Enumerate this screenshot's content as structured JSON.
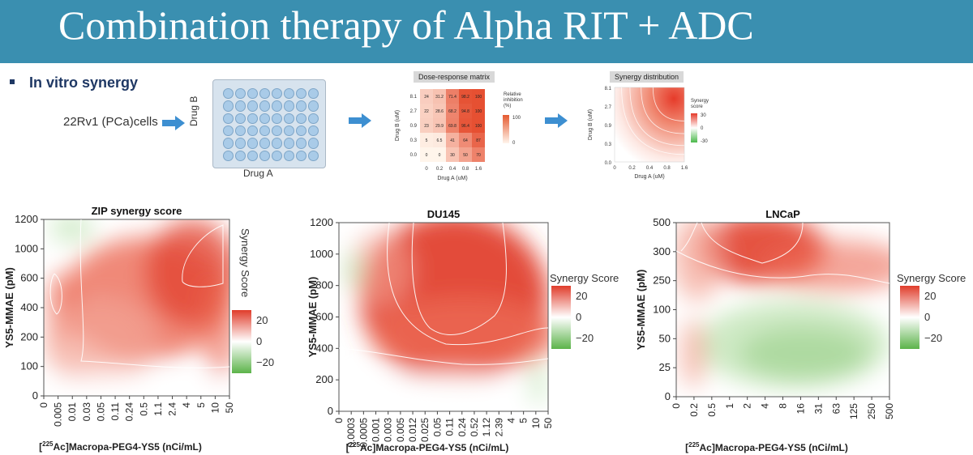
{
  "slide": {
    "title": "Combination therapy of Alpha RIT + ADC",
    "bullet": "In vitro synergy",
    "cells_label": "22Rv1 (PCa)cells",
    "drug_a_label": "Drug A",
    "drug_b_label": "Drug B"
  },
  "colors": {
    "header": "#3a8fb0",
    "synergy_high": "#e84a33",
    "synergy_low": "#5cb85c",
    "arrow": "#3d8fd1"
  },
  "dose_response": {
    "title": "Dose-response matrix",
    "xlabel": "Drug A (uM)",
    "ylabel": "Drug B (uM)",
    "x_ticks": [
      "0",
      "0.2",
      "0.4",
      "0.8",
      "1.6"
    ],
    "y_ticks": [
      "8.1",
      "2.7",
      "0.9",
      "0.3",
      "0.0"
    ],
    "cells": [
      [
        "24",
        "31.2",
        "71.4",
        "98.2",
        "100"
      ],
      [
        "22",
        "28.6",
        "68.2",
        "94.8",
        "100"
      ],
      [
        "23",
        "29.9",
        "69.8",
        "96.4",
        "100"
      ],
      [
        "5",
        "6.5",
        "41",
        "64",
        "87"
      ],
      [
        "0",
        "0",
        "30",
        "50",
        "70"
      ]
    ],
    "legend_title": "Relative inhibition (%)",
    "legend_max": "100",
    "legend_min": "0"
  },
  "synergy_small": {
    "title": "Synergy distribution",
    "xlabel": "Drug A (uM)",
    "ylabel": "Drug B (uM)",
    "x_ticks": [
      "0",
      "0.2",
      "0.4",
      "0.8",
      "1.6"
    ],
    "y_ticks": [
      "8.1",
      "2.7",
      "0.9",
      "0.3",
      "0.0"
    ],
    "legend_title": "Synergy score",
    "legend_ticks": [
      "30",
      "0",
      "-30"
    ]
  },
  "chart_data": [
    {
      "type": "heatmap",
      "title": "ZIP synergy score",
      "xlabel": "[225Ac]Macropa-PEG4-YS5 (nCi/mL)",
      "ylabel": "YS5-MMAE (pM)",
      "x_ticks": [
        "0",
        "0.005",
        "0.01",
        "0.03",
        "0.05",
        "0.11",
        "0.24",
        "0.5",
        "1.1",
        "2.4",
        "4",
        "5",
        "10",
        "50"
      ],
      "y_ticks": [
        "0",
        "100",
        "200",
        "400",
        "600",
        "1000",
        "1200"
      ],
      "legend_title": "Synergy Score",
      "legend_ticks": [
        "20",
        "0",
        "−20"
      ],
      "scale": [
        -20,
        20
      ]
    },
    {
      "type": "heatmap",
      "title": "DU145",
      "xlabel": "[225Ac]Macropa-PEG4-YS5 (nCi/mL)",
      "ylabel": "YS5-MMAE (pM)",
      "x_ticks": [
        "0",
        "0.0003",
        "0.0005",
        "0.001",
        "0.003",
        "0.005",
        "0.012",
        "0.025",
        "0.05",
        "0.11",
        "0.24",
        "0.52",
        "1.12",
        "2.39",
        "4",
        "5",
        "10",
        "50"
      ],
      "y_ticks": [
        "0",
        "200",
        "400",
        "600",
        "800",
        "1000",
        "1200"
      ],
      "legend_title": "Synergy Score",
      "legend_ticks": [
        "20",
        "0",
        "−20"
      ],
      "scale": [
        -20,
        20
      ]
    },
    {
      "type": "heatmap",
      "title": "LNCaP",
      "xlabel": "[225Ac]Macropa-PEG4-YS5 (nCi/mL)",
      "ylabel": "YS5-MMAE (pM)",
      "x_ticks": [
        "0",
        "0.2",
        "0.5",
        "1",
        "2",
        "4",
        "8",
        "16",
        "31",
        "63",
        "125",
        "250",
        "500"
      ],
      "y_ticks": [
        "0",
        "25",
        "50",
        "100",
        "250",
        "300",
        "500"
      ],
      "legend_title": "Synergy Score",
      "legend_ticks": [
        "20",
        "0",
        "−20"
      ],
      "scale": [
        -20,
        20
      ]
    }
  ]
}
